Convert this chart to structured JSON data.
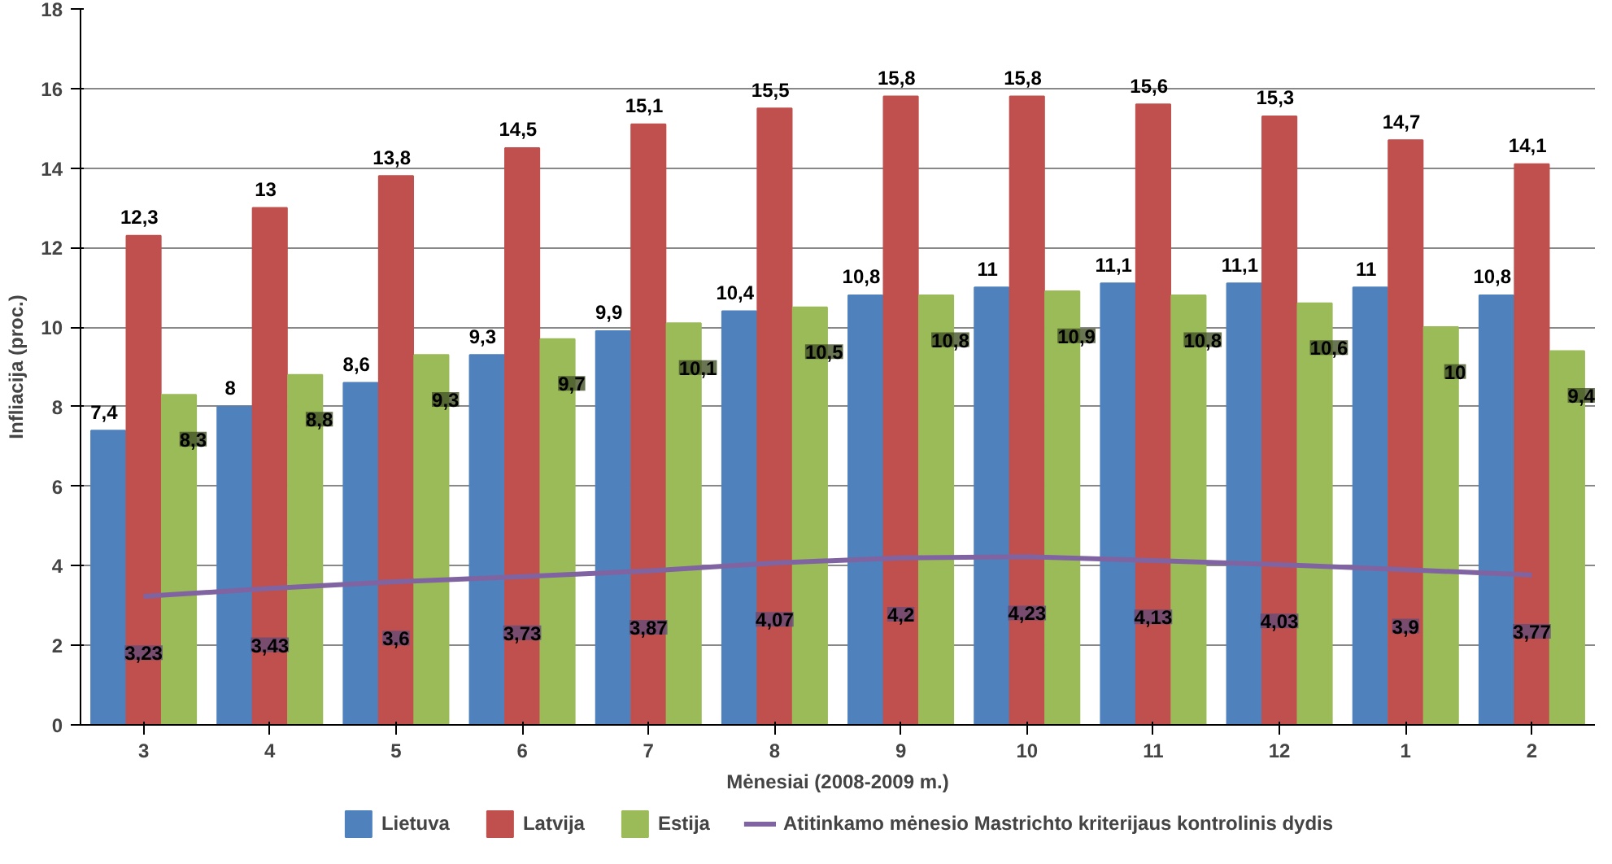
{
  "chart_data": {
    "type": "bar",
    "xlabel": "Mėnesiai (2008-2009 m.)",
    "ylabel": "Infliacija (proc.)",
    "categories": [
      "3",
      "4",
      "5",
      "6",
      "7",
      "8",
      "9",
      "10",
      "11",
      "12",
      "1",
      "2"
    ],
    "series": [
      {
        "name": "Lietuva",
        "color": "#4f81bd",
        "values": [
          7.4,
          8,
          8.6,
          9.3,
          9.9,
          10.4,
          10.8,
          11,
          11.1,
          11.1,
          11,
          10.8
        ],
        "value_labels": [
          "7,4",
          "8",
          "8,6",
          "9,3",
          "9,9",
          "10,4",
          "10,8",
          "11",
          "11,1",
          "11,1",
          "11",
          "10,8"
        ]
      },
      {
        "name": "Latvija",
        "color": "#c0504d",
        "values": [
          12.3,
          13,
          13.8,
          14.5,
          15.1,
          15.5,
          15.8,
          15.8,
          15.6,
          15.3,
          14.7,
          14.1
        ],
        "value_labels": [
          "12,3",
          "13",
          "13,8",
          "14,5",
          "15,1",
          "15,5",
          "15,8",
          "15,8",
          "15,6",
          "15,3",
          "14,7",
          "14,1"
        ]
      },
      {
        "name": "Estija",
        "color": "#9bbb59",
        "values": [
          8.3,
          8.8,
          9.3,
          9.7,
          10.1,
          10.5,
          10.8,
          10.9,
          10.8,
          10.6,
          10,
          9.4
        ],
        "value_labels": [
          "8,3",
          "8,8",
          "9,3",
          "9,7",
          "10,1",
          "10,5",
          "10,8",
          "10,9",
          "10,8",
          "10,6",
          "10",
          "9,4"
        ]
      },
      {
        "name": "Atitinkamo mėnesio Mastrichto kriterijaus kontrolinis dydis",
        "type": "line",
        "color": "#8064a2",
        "values": [
          3.23,
          3.43,
          3.6,
          3.73,
          3.87,
          4.07,
          4.2,
          4.23,
          4.13,
          4.03,
          3.9,
          3.77
        ],
        "value_labels": [
          "3,23",
          "3,43",
          "3,6",
          "3,73",
          "3,87",
          "4,07",
          "4,2",
          "4,23",
          "4,13",
          "4,03",
          "3,9",
          "3,77"
        ]
      }
    ],
    "ylim": [
      0,
      18
    ],
    "yticks": [
      0,
      2,
      4,
      6,
      8,
      10,
      12,
      14,
      16,
      18
    ],
    "grid": "y",
    "legend": "bottom"
  }
}
